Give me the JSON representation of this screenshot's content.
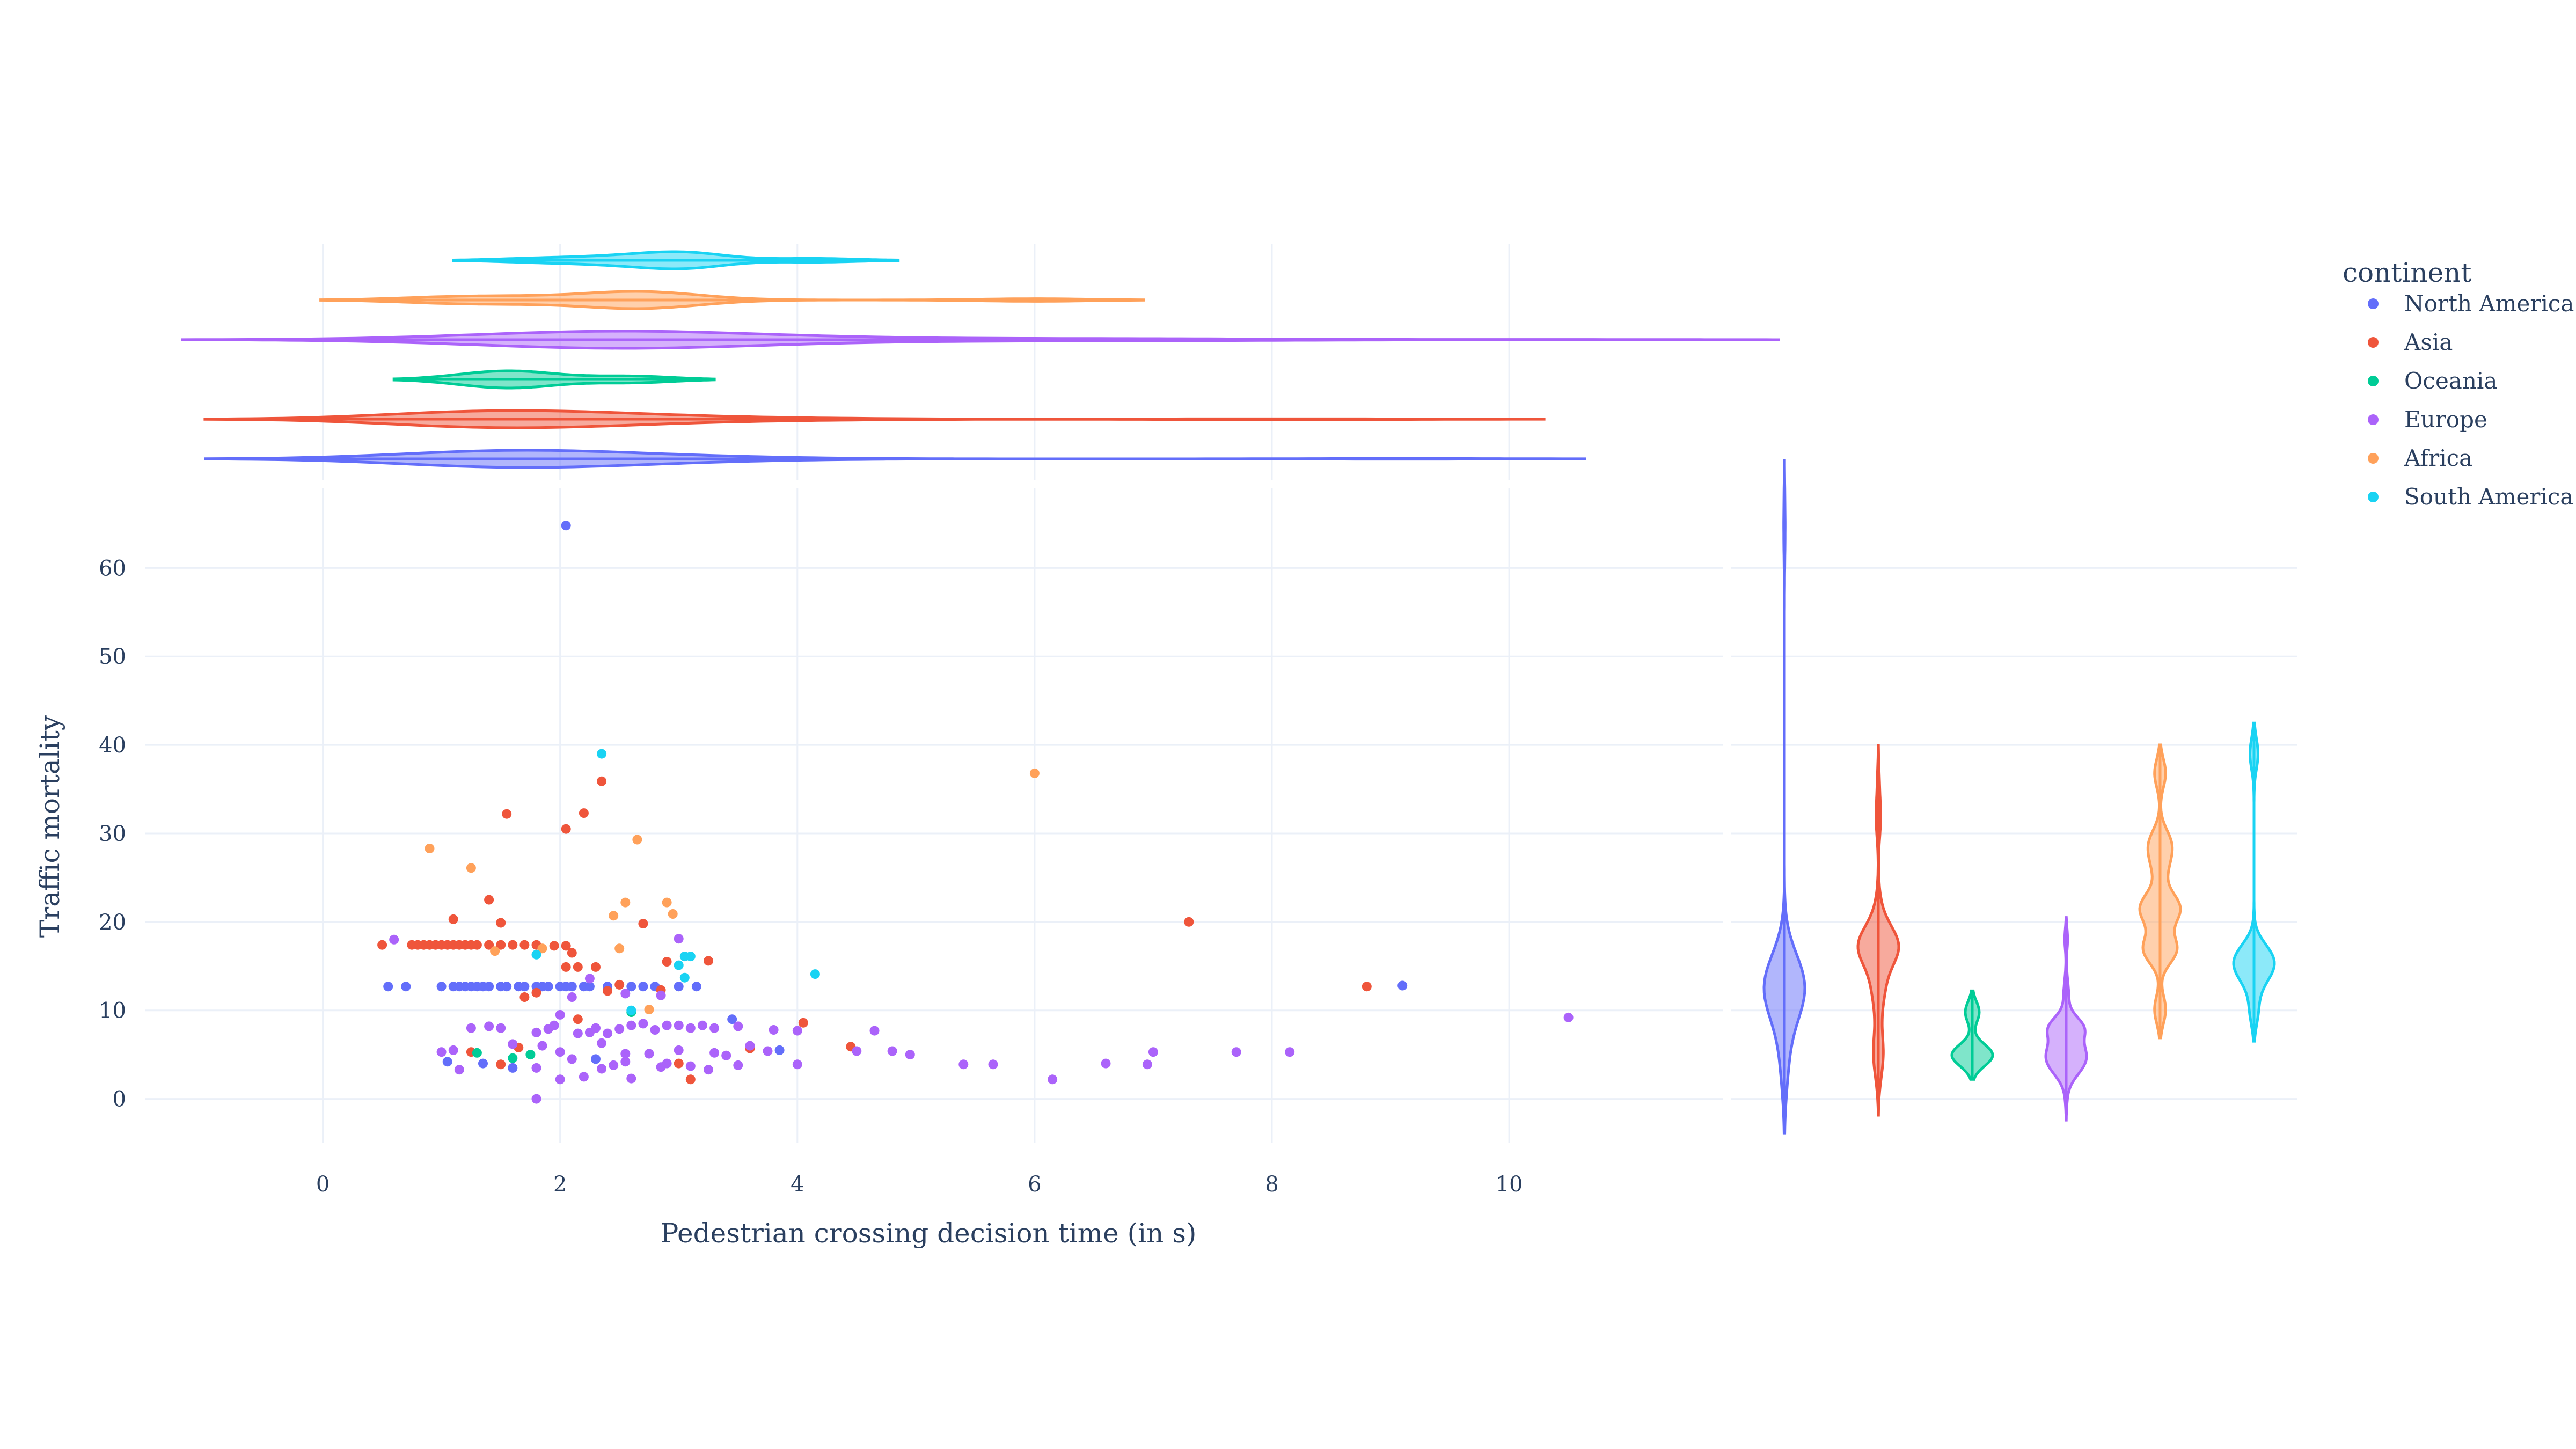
{
  "chart_data": {
    "type": "scatter",
    "xlabel": "Pedestrian crossing decision time (in s)",
    "ylabel": "Traffic mortality",
    "xlim": [
      -1.5,
      11.8
    ],
    "ylim": [
      -5,
      69
    ],
    "x_ticks": [
      0,
      2,
      4,
      6,
      8,
      10
    ],
    "y_ticks": [
      0,
      10,
      20,
      30,
      40,
      50,
      60
    ],
    "grid": true,
    "legend": {
      "title": "continent",
      "position": "right"
    },
    "marginal_x": "violin",
    "marginal_y": "violin",
    "series": [
      {
        "name": "North America",
        "color": "#636efa",
        "points": [
          [
            0.55,
            12.7
          ],
          [
            0.7,
            12.7
          ],
          [
            1.0,
            12.7
          ],
          [
            1.1,
            12.7
          ],
          [
            1.15,
            12.7
          ],
          [
            1.2,
            12.7
          ],
          [
            1.25,
            12.7
          ],
          [
            1.3,
            12.7
          ],
          [
            1.35,
            12.7
          ],
          [
            1.4,
            12.7
          ],
          [
            1.5,
            12.7
          ],
          [
            1.55,
            12.7
          ],
          [
            1.65,
            12.7
          ],
          [
            1.7,
            12.7
          ],
          [
            1.8,
            12.7
          ],
          [
            1.85,
            12.7
          ],
          [
            1.9,
            12.7
          ],
          [
            2.0,
            12.7
          ],
          [
            2.05,
            12.7
          ],
          [
            2.1,
            12.7
          ],
          [
            2.2,
            12.7
          ],
          [
            2.25,
            12.7
          ],
          [
            2.4,
            12.7
          ],
          [
            2.6,
            12.7
          ],
          [
            2.7,
            12.7
          ],
          [
            2.8,
            12.7
          ],
          [
            3.0,
            12.7
          ],
          [
            3.15,
            12.7
          ],
          [
            2.05,
            64.8
          ],
          [
            3.45,
            9.0
          ],
          [
            3.85,
            5.5
          ],
          [
            9.1,
            12.8
          ],
          [
            1.05,
            4.2
          ],
          [
            1.35,
            4.0
          ],
          [
            1.6,
            3.5
          ],
          [
            2.3,
            4.5
          ]
        ]
      },
      {
        "name": "Asia",
        "color": "#ef553b",
        "points": [
          [
            0.5,
            17.4
          ],
          [
            0.75,
            17.4
          ],
          [
            0.8,
            17.4
          ],
          [
            0.85,
            17.4
          ],
          [
            0.9,
            17.4
          ],
          [
            0.95,
            17.4
          ],
          [
            1.0,
            17.4
          ],
          [
            1.05,
            17.4
          ],
          [
            1.1,
            17.4
          ],
          [
            1.15,
            17.4
          ],
          [
            1.2,
            17.4
          ],
          [
            1.25,
            17.4
          ],
          [
            1.3,
            17.4
          ],
          [
            1.4,
            17.4
          ],
          [
            1.5,
            17.4
          ],
          [
            1.6,
            17.4
          ],
          [
            1.7,
            17.4
          ],
          [
            1.8,
            17.4
          ],
          [
            1.5,
            19.9
          ],
          [
            1.1,
            20.3
          ],
          [
            1.4,
            22.5
          ],
          [
            1.55,
            32.2
          ],
          [
            2.05,
            30.5
          ],
          [
            2.2,
            32.3
          ],
          [
            2.35,
            35.9
          ],
          [
            1.95,
            17.3
          ],
          [
            2.05,
            17.3
          ],
          [
            2.1,
            16.5
          ],
          [
            2.05,
            14.9
          ],
          [
            2.15,
            14.9
          ],
          [
            2.3,
            14.9
          ],
          [
            1.7,
            11.5
          ],
          [
            1.8,
            12.0
          ],
          [
            2.4,
            12.2
          ],
          [
            2.5,
            12.9
          ],
          [
            2.7,
            19.8
          ],
          [
            2.9,
            15.5
          ],
          [
            3.25,
            15.6
          ],
          [
            2.85,
            12.3
          ],
          [
            2.15,
            9.0
          ],
          [
            4.05,
            8.6
          ],
          [
            3.6,
            5.7
          ],
          [
            4.45,
            5.9
          ],
          [
            3.0,
            4.0
          ],
          [
            3.1,
            2.2
          ],
          [
            1.65,
            5.8
          ],
          [
            1.25,
            5.3
          ],
          [
            1.5,
            3.9
          ],
          [
            7.3,
            20.0
          ],
          [
            8.8,
            12.7
          ]
        ]
      },
      {
        "name": "Oceania",
        "color": "#00cc96",
        "points": [
          [
            1.3,
            5.2
          ],
          [
            1.6,
            4.6
          ],
          [
            1.75,
            5.0
          ],
          [
            2.6,
            9.8
          ]
        ]
      },
      {
        "name": "Europe",
        "color": "#ab63fa",
        "points": [
          [
            0.6,
            18.0
          ],
          [
            1.0,
            5.3
          ],
          [
            1.15,
            3.3
          ],
          [
            1.25,
            8.0
          ],
          [
            1.4,
            8.2
          ],
          [
            1.5,
            8.0
          ],
          [
            1.6,
            6.2
          ],
          [
            1.8,
            7.5
          ],
          [
            1.85,
            6.0
          ],
          [
            1.9,
            7.9
          ],
          [
            1.95,
            8.3
          ],
          [
            2.0,
            5.3
          ],
          [
            2.1,
            4.5
          ],
          [
            2.15,
            7.4
          ],
          [
            2.25,
            7.5
          ],
          [
            2.3,
            8.0
          ],
          [
            2.35,
            6.3
          ],
          [
            2.4,
            7.4
          ],
          [
            2.5,
            7.9
          ],
          [
            2.55,
            5.1
          ],
          [
            2.6,
            8.3
          ],
          [
            2.7,
            8.5
          ],
          [
            2.8,
            7.8
          ],
          [
            2.9,
            8.3
          ],
          [
            3.0,
            8.3
          ],
          [
            3.1,
            8.0
          ],
          [
            3.2,
            8.3
          ],
          [
            3.3,
            8.0
          ],
          [
            3.5,
            8.2
          ],
          [
            3.6,
            6.0
          ],
          [
            3.8,
            7.8
          ],
          [
            4.0,
            7.7
          ],
          [
            1.8,
            3.5
          ],
          [
            2.0,
            2.2
          ],
          [
            2.2,
            2.5
          ],
          [
            2.35,
            3.4
          ],
          [
            2.45,
            3.8
          ],
          [
            2.55,
            4.2
          ],
          [
            2.6,
            2.3
          ],
          [
            2.75,
            5.1
          ],
          [
            2.85,
            3.6
          ],
          [
            2.9,
            4.0
          ],
          [
            3.0,
            5.5
          ],
          [
            3.1,
            3.7
          ],
          [
            3.25,
            3.3
          ],
          [
            3.4,
            4.9
          ],
          [
            3.5,
            3.8
          ],
          [
            3.75,
            5.4
          ],
          [
            2.1,
            11.5
          ],
          [
            2.25,
            13.6
          ],
          [
            2.85,
            11.7
          ],
          [
            3.0,
            18.1
          ],
          [
            3.3,
            5.2
          ],
          [
            4.0,
            3.9
          ],
          [
            4.5,
            5.4
          ],
          [
            4.65,
            7.7
          ],
          [
            4.8,
            5.4
          ],
          [
            4.95,
            5.0
          ],
          [
            5.4,
            3.9
          ],
          [
            5.65,
            3.9
          ],
          [
            6.15,
            2.2
          ],
          [
            6.6,
            4.0
          ],
          [
            6.95,
            3.9
          ],
          [
            7.0,
            5.3
          ],
          [
            7.7,
            5.3
          ],
          [
            8.15,
            5.3
          ],
          [
            10.5,
            9.2
          ],
          [
            1.8,
            0.0
          ],
          [
            1.1,
            5.5
          ],
          [
            2.0,
            9.5
          ],
          [
            2.55,
            11.9
          ]
        ]
      },
      {
        "name": "Africa",
        "color": "#ffa15a",
        "points": [
          [
            0.9,
            28.3
          ],
          [
            1.25,
            26.1
          ],
          [
            1.45,
            16.7
          ],
          [
            1.85,
            17.0
          ],
          [
            2.45,
            20.7
          ],
          [
            2.5,
            17.0
          ],
          [
            2.55,
            22.2
          ],
          [
            2.65,
            29.3
          ],
          [
            2.9,
            22.2
          ],
          [
            2.95,
            20.9
          ],
          [
            2.75,
            10.1
          ],
          [
            6.0,
            36.8
          ]
        ]
      },
      {
        "name": "South America",
        "color": "#19d3f3",
        "points": [
          [
            1.8,
            16.3
          ],
          [
            2.35,
            39.0
          ],
          [
            3.0,
            15.1
          ],
          [
            3.05,
            16.1
          ],
          [
            3.1,
            16.1
          ],
          [
            3.05,
            13.7
          ],
          [
            4.15,
            14.1
          ],
          [
            2.6,
            10.0
          ]
        ]
      }
    ]
  }
}
